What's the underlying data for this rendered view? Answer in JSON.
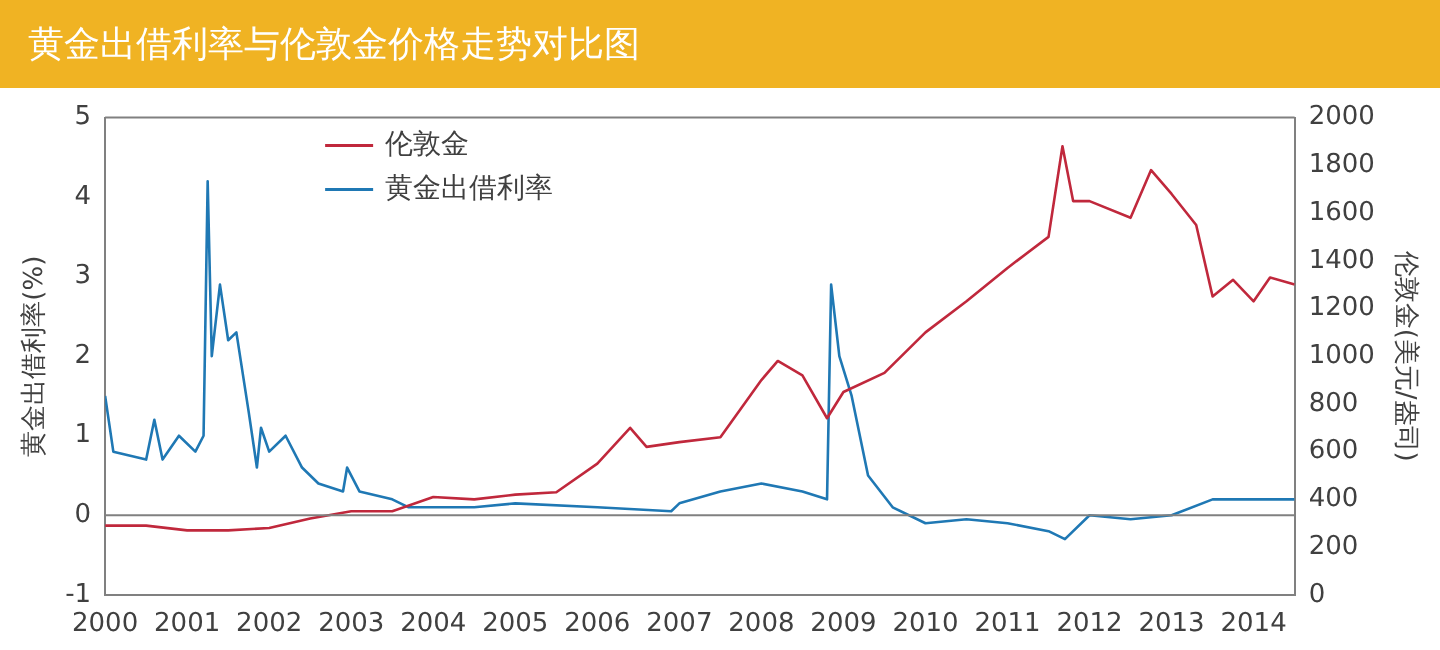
{
  "chart_data": {
    "type": "line",
    "title": "黄金出借利率与伦敦金价格走势对比图",
    "ylabel": "黄金出借利率(%)",
    "y2label": "伦敦金(美元/盎司)",
    "xlim": [
      2000,
      2014.5
    ],
    "xticks": [
      2000,
      2001,
      2002,
      2003,
      2004,
      2005,
      2006,
      2007,
      2008,
      2009,
      2010,
      2011,
      2012,
      2013,
      2014
    ],
    "ylim": [
      -1,
      5
    ],
    "yticks": [
      -1,
      0,
      1,
      2,
      3,
      4,
      5
    ],
    "y2lim": [
      0,
      2000
    ],
    "y2ticks": [
      0,
      200,
      400,
      600,
      800,
      1000,
      1200,
      1400,
      1600,
      1800,
      2000
    ],
    "grid": false,
    "legend": "top left",
    "marker": "none",
    "line_style": "solid",
    "ref_lines": [
      {
        "axis": "y",
        "value": 0,
        "color": "#808080"
      }
    ],
    "series": [
      {
        "name": "伦敦金",
        "color": "#c0283c",
        "axis": "y2",
        "x": [
          2000.0,
          2000.5,
          2001.0,
          2001.5,
          2002.0,
          2002.5,
          2003.0,
          2003.5,
          2004.0,
          2004.5,
          2005.0,
          2005.5,
          2006.0,
          2006.4,
          2006.6,
          2007.0,
          2007.5,
          2008.0,
          2008.2,
          2008.5,
          2008.8,
          2009.0,
          2009.5,
          2010.0,
          2010.5,
          2011.0,
          2011.5,
          2011.67,
          2011.8,
          2012.0,
          2012.5,
          2012.75,
          2013.0,
          2013.3,
          2013.5,
          2013.75,
          2014.0,
          2014.2,
          2014.5
        ],
        "values": [
          290,
          290,
          270,
          270,
          280,
          320,
          350,
          350,
          410,
          400,
          420,
          430,
          550,
          700,
          620,
          640,
          660,
          900,
          980,
          920,
          740,
          850,
          930,
          1100,
          1230,
          1370,
          1500,
          1880,
          1650,
          1650,
          1580,
          1780,
          1680,
          1550,
          1250,
          1320,
          1230,
          1330,
          1300
        ]
      },
      {
        "name": "黄金出借利率",
        "color": "#1f78b4",
        "x": [
          2000.0,
          2000.1,
          2000.5,
          2000.6,
          2000.7,
          2000.9,
          2001.1,
          2001.2,
          2001.25,
          2001.3,
          2001.4,
          2001.5,
          2001.6,
          2001.75,
          2001.85,
          2001.9,
          2002.0,
          2002.2,
          2002.4,
          2002.6,
          2002.9,
          2002.95,
          2003.1,
          2003.5,
          2003.7,
          2004.5,
          2005.0,
          2006.0,
          2006.9,
          2007.0,
          2007.5,
          2008.0,
          2008.5,
          2008.8,
          2008.85,
          2008.95,
          2009.1,
          2009.3,
          2009.6,
          2010.0,
          2010.5,
          2011.0,
          2011.5,
          2011.7,
          2012.0,
          2012.5,
          2013.0,
          2013.5,
          2014.0,
          2014.5
        ],
        "values": [
          1.5,
          0.8,
          0.7,
          1.2,
          0.7,
          1.0,
          0.8,
          1.0,
          4.2,
          2.0,
          2.9,
          2.2,
          2.3,
          1.3,
          0.6,
          1.1,
          0.8,
          1.0,
          0.6,
          0.4,
          0.3,
          0.6,
          0.3,
          0.2,
          0.1,
          0.1,
          0.15,
          0.1,
          0.05,
          0.15,
          0.3,
          0.4,
          0.3,
          0.2,
          2.9,
          2.0,
          1.5,
          0.5,
          0.1,
          -0.1,
          -0.05,
          -0.1,
          -0.2,
          -0.3,
          0.0,
          -0.05,
          0.0,
          0.2,
          0.2,
          0.2
        ]
      }
    ]
  }
}
